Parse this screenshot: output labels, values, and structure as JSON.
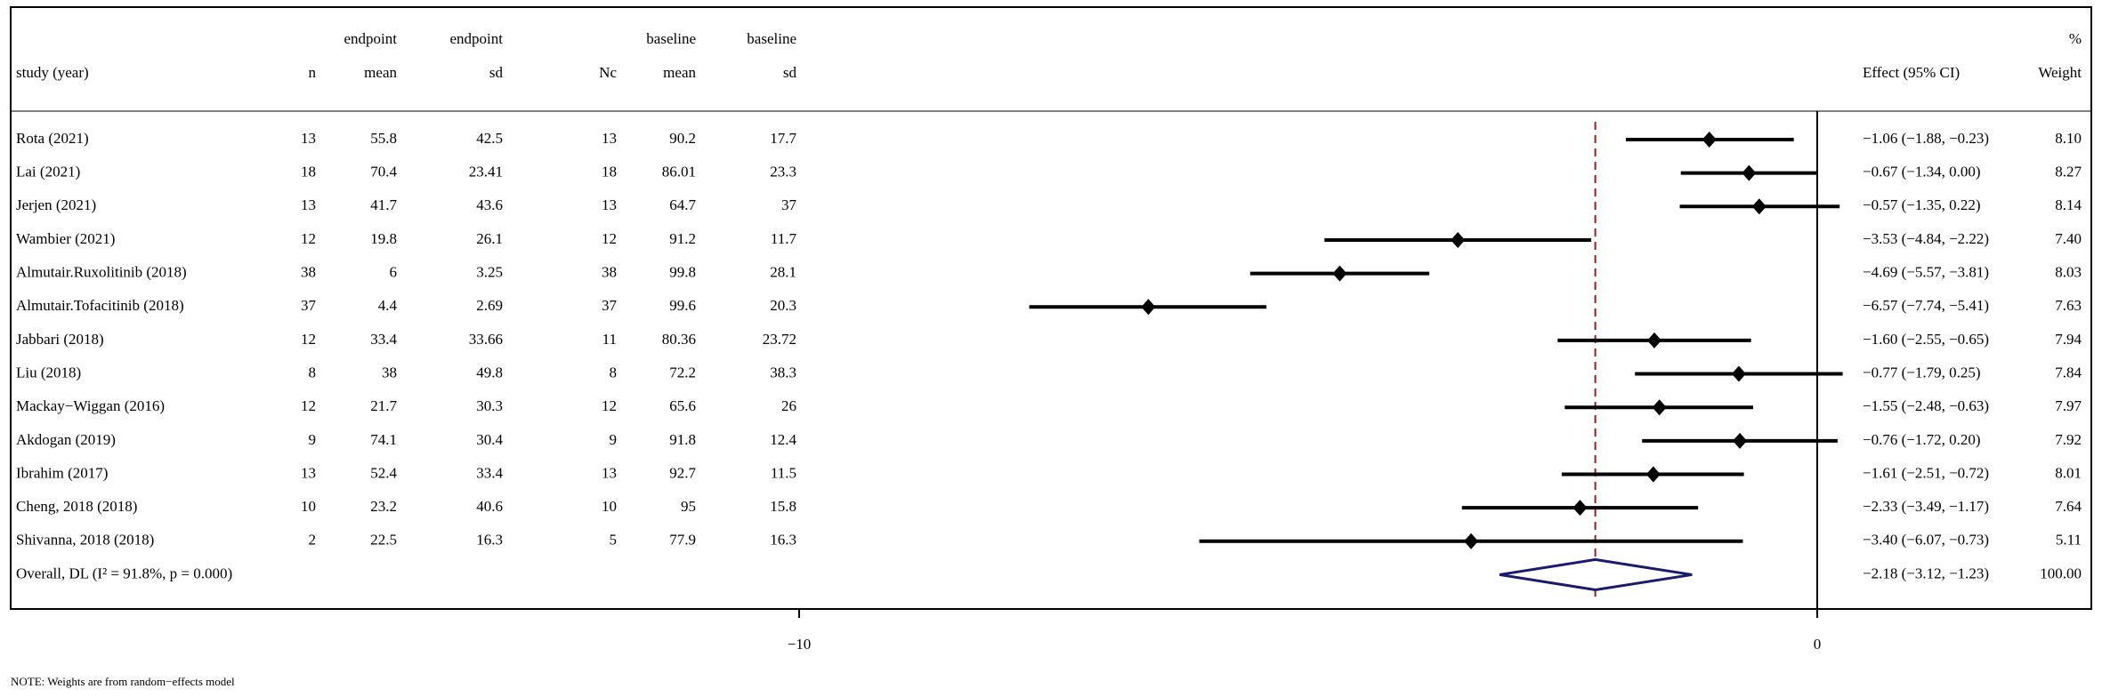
{
  "chart_data": {
    "type": "forest",
    "headers": [
      [
        "study (year)"
      ],
      [
        "n"
      ],
      [
        "endpoint",
        "mean"
      ],
      [
        "endpoint",
        "sd"
      ],
      [
        "Nc"
      ],
      [
        "baseline",
        "mean"
      ],
      [
        "baseline",
        "sd"
      ],
      [
        "Effect (95% CI)"
      ],
      [
        "%",
        "Weight"
      ]
    ],
    "studies": [
      {
        "name": "Rota (2021)",
        "n": 13,
        "mean": 55.8,
        "sd": 42.5,
        "nc": 13,
        "baseline_mean": 90.2,
        "baseline_sd": 17.7,
        "estimate": -1.06,
        "ci_lower": -1.88,
        "ci_upper": -0.23,
        "effect_label": "−1.06 (−1.88, −0.23)",
        "weight": "8.10"
      },
      {
        "name": "Lai (2021)",
        "n": 18,
        "mean": 70.4,
        "sd": 23.41,
        "nc": 18,
        "baseline_mean": 86.01,
        "baseline_sd": 23.3,
        "estimate": -0.67,
        "ci_lower": -1.34,
        "ci_upper": 0.0,
        "effect_label": "−0.67 (−1.34, 0.00)",
        "weight": "8.27"
      },
      {
        "name": "Jerjen (2021)",
        "n": 13,
        "mean": 41.7,
        "sd": 43.6,
        "nc": 13,
        "baseline_mean": 64.7,
        "baseline_sd": 37,
        "estimate": -0.57,
        "ci_lower": -1.35,
        "ci_upper": 0.22,
        "effect_label": "−0.57 (−1.35, 0.22)",
        "weight": "8.14"
      },
      {
        "name": "Wambier (2021)",
        "n": 12,
        "mean": 19.8,
        "sd": 26.1,
        "nc": 12,
        "baseline_mean": 91.2,
        "baseline_sd": 11.7,
        "estimate": -3.53,
        "ci_lower": -4.84,
        "ci_upper": -2.22,
        "effect_label": "−3.53 (−4.84, −2.22)",
        "weight": "7.40"
      },
      {
        "name": "Almutair.Ruxolitinib (2018)",
        "n": 38,
        "mean": 6,
        "sd": 3.25,
        "nc": 38,
        "baseline_mean": 99.8,
        "baseline_sd": 28.1,
        "estimate": -4.69,
        "ci_lower": -5.57,
        "ci_upper": -3.81,
        "effect_label": "−4.69 (−5.57, −3.81)",
        "weight": "8.03"
      },
      {
        "name": "Almutair.Tofacitinib (2018)",
        "n": 37,
        "mean": 4.4,
        "sd": 2.69,
        "nc": 37,
        "baseline_mean": 99.6,
        "baseline_sd": 20.3,
        "estimate": -6.57,
        "ci_lower": -7.74,
        "ci_upper": -5.41,
        "effect_label": "−6.57 (−7.74, −5.41)",
        "weight": "7.63"
      },
      {
        "name": "Jabbari (2018)",
        "n": 12,
        "mean": 33.4,
        "sd": 33.66,
        "nc": 11,
        "baseline_mean": 80.36,
        "baseline_sd": 23.72,
        "estimate": -1.6,
        "ci_lower": -2.55,
        "ci_upper": -0.65,
        "effect_label": "−1.60 (−2.55, −0.65)",
        "weight": "7.94"
      },
      {
        "name": "Liu (2018)",
        "n": 8,
        "mean": 38,
        "sd": 49.8,
        "nc": 8,
        "baseline_mean": 72.2,
        "baseline_sd": 38.3,
        "estimate": -0.77,
        "ci_lower": -1.79,
        "ci_upper": 0.25,
        "effect_label": "−0.77 (−1.79, 0.25)",
        "weight": "7.84"
      },
      {
        "name": "Mackay−Wiggan (2016)",
        "n": 12,
        "mean": 21.7,
        "sd": 30.3,
        "nc": 12,
        "baseline_mean": 65.6,
        "baseline_sd": 26,
        "estimate": -1.55,
        "ci_lower": -2.48,
        "ci_upper": -0.63,
        "effect_label": "−1.55 (−2.48, −0.63)",
        "weight": "7.97"
      },
      {
        "name": "Akdogan (2019)",
        "n": 9,
        "mean": 74.1,
        "sd": 30.4,
        "nc": 9,
        "baseline_mean": 91.8,
        "baseline_sd": 12.4,
        "estimate": -0.76,
        "ci_lower": -1.72,
        "ci_upper": 0.2,
        "effect_label": "−0.76 (−1.72, 0.20)",
        "weight": "7.92"
      },
      {
        "name": "Ibrahim (2017)",
        "n": 13,
        "mean": 52.4,
        "sd": 33.4,
        "nc": 13,
        "baseline_mean": 92.7,
        "baseline_sd": 11.5,
        "estimate": -1.61,
        "ci_lower": -2.51,
        "ci_upper": -0.72,
        "effect_label": "−1.61 (−2.51, −0.72)",
        "weight": "8.01"
      },
      {
        "name": "Cheng, 2018 (2018)",
        "n": 10,
        "mean": 23.2,
        "sd": 40.6,
        "nc": 10,
        "baseline_mean": 95,
        "baseline_sd": 15.8,
        "estimate": -2.33,
        "ci_lower": -3.49,
        "ci_upper": -1.17,
        "effect_label": "−2.33 (−3.49, −1.17)",
        "weight": "7.64"
      },
      {
        "name": "Shivanna, 2018 (2018)",
        "n": 2,
        "mean": 22.5,
        "sd": 16.3,
        "nc": 5,
        "baseline_mean": 77.9,
        "baseline_sd": 16.3,
        "estimate": -3.4,
        "ci_lower": -6.07,
        "ci_upper": -0.73,
        "effect_label": "−3.40 (−6.07, −0.73)",
        "weight": "5.11"
      }
    ],
    "overall": {
      "name": "Overall, DL (I² = 91.8%, p = 0.000)",
      "estimate": -2.18,
      "ci_lower": -3.12,
      "ci_upper": -1.23,
      "effect_label": "−2.18 (−3.12, −1.23)",
      "weight": "100.00"
    },
    "xlim": [
      -10,
      0
    ],
    "xticks": [
      {
        "value": -10,
        "label": "−10"
      },
      0
    ],
    "note": "NOTE: Weights are from random−effects model"
  }
}
